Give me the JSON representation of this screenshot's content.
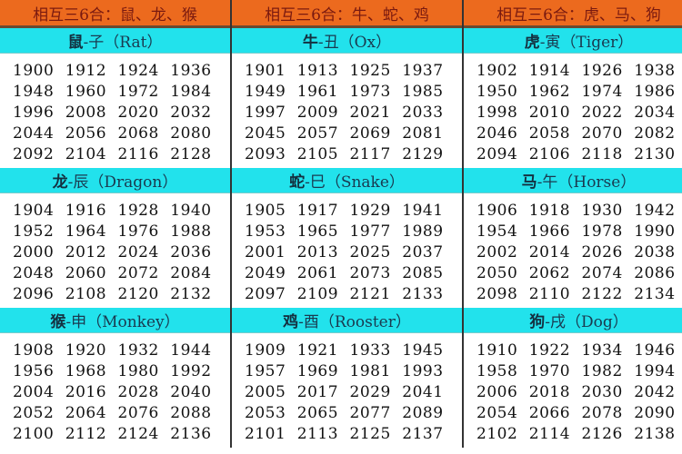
{
  "headers": [
    "相互三6合：鼠、龙、猴",
    "相互三6合：牛、蛇、鸡",
    "相互三6合：虎、马、狗"
  ],
  "signs": [
    {
      "cn": "鼠",
      "branch": "-子",
      "en": "（Rat）",
      "years": [
        1900,
        1912,
        1924,
        1936,
        1948,
        1960,
        1972,
        1984,
        1996,
        2008,
        2020,
        2032,
        2044,
        2056,
        2068,
        2080,
        2092,
        2104,
        2116,
        2128
      ]
    },
    {
      "cn": "牛",
      "branch": "-丑",
      "en": "（Ox）",
      "years": [
        1901,
        1913,
        1925,
        1937,
        1949,
        1961,
        1973,
        1985,
        1997,
        2009,
        2021,
        2033,
        2045,
        2057,
        2069,
        2081,
        2093,
        2105,
        2117,
        2129
      ]
    },
    {
      "cn": "虎",
      "branch": "-寅",
      "en": "（Tiger）",
      "years": [
        1902,
        1914,
        1926,
        1938,
        1950,
        1962,
        1974,
        1986,
        1998,
        2010,
        2022,
        2034,
        2046,
        2058,
        2070,
        2082,
        2094,
        2106,
        2118,
        2130
      ]
    },
    {
      "cn": "龙",
      "branch": "-辰",
      "en": "（Dragon）",
      "years": [
        1904,
        1916,
        1928,
        1940,
        1952,
        1964,
        1976,
        1988,
        2000,
        2012,
        2024,
        2036,
        2048,
        2060,
        2072,
        2084,
        2096,
        2108,
        2120,
        2132
      ]
    },
    {
      "cn": "蛇",
      "branch": "-巳",
      "en": "（Snake）",
      "years": [
        1905,
        1917,
        1929,
        1941,
        1953,
        1965,
        1977,
        1989,
        2001,
        2013,
        2025,
        2037,
        2049,
        2061,
        2073,
        2085,
        2097,
        2109,
        2121,
        2133
      ]
    },
    {
      "cn": "马",
      "branch": "-午",
      "en": "（Horse）",
      "years": [
        1906,
        1918,
        1930,
        1942,
        1954,
        1966,
        1978,
        1990,
        2002,
        2014,
        2026,
        2038,
        2050,
        2062,
        2074,
        2086,
        2098,
        2110,
        2122,
        2134
      ]
    },
    {
      "cn": "猴",
      "branch": "-申",
      "en": "（Monkey）",
      "years": [
        1908,
        1920,
        1932,
        1944,
        1956,
        1968,
        1980,
        1992,
        2004,
        2016,
        2028,
        2040,
        2052,
        2064,
        2076,
        2088,
        2100,
        2112,
        2124,
        2136
      ]
    },
    {
      "cn": "鸡",
      "branch": "-酉",
      "en": "（Rooster）",
      "years": [
        1909,
        1921,
        1933,
        1945,
        1957,
        1969,
        1981,
        1993,
        2005,
        2017,
        2029,
        2041,
        2053,
        2065,
        2077,
        2089,
        2101,
        2113,
        2125,
        2137
      ]
    },
    {
      "cn": "狗",
      "branch": "-戌",
      "en": "（Dog）",
      "years": [
        1910,
        1922,
        1934,
        1946,
        1958,
        1970,
        1982,
        1994,
        2006,
        2018,
        2030,
        2042,
        2054,
        2066,
        2078,
        2090,
        2102,
        2114,
        2126,
        2138
      ]
    }
  ],
  "colors": {
    "header_bg": "#ec6a1e",
    "sign_bg": "#22e2ec"
  }
}
